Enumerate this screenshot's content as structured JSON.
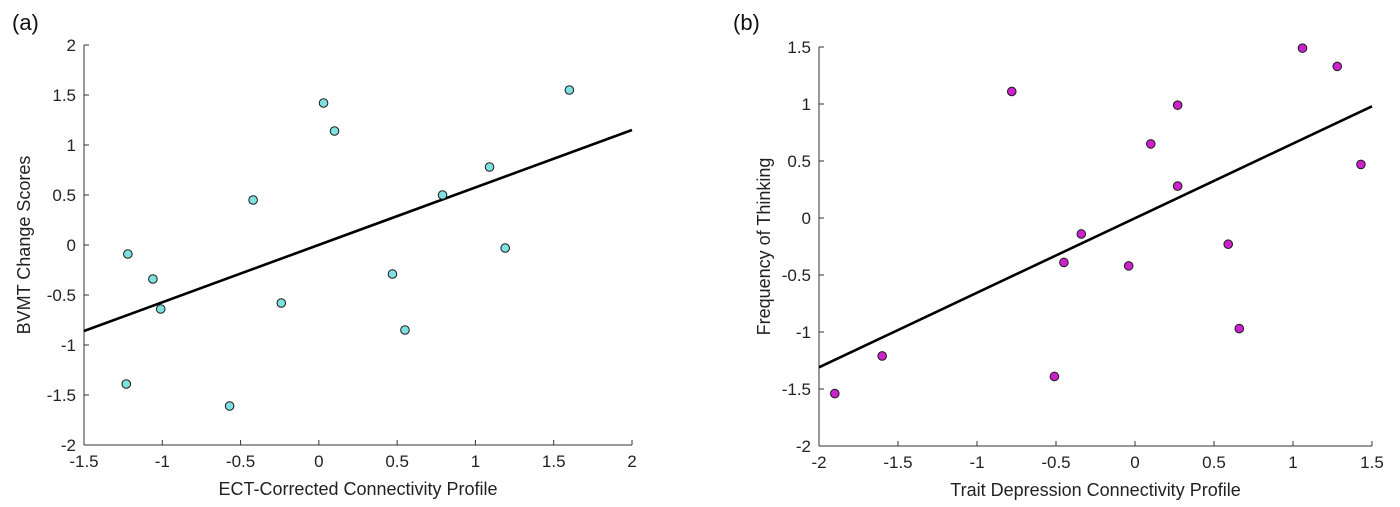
{
  "chart_data": [
    {
      "type": "scatter",
      "panel_label": "(a)",
      "title": "",
      "xlabel": "ECT-Corrected Connectivity Profile",
      "ylabel": "BVMT Change Scores",
      "xlim": [
        -1.5,
        2
      ],
      "ylim": [
        -2,
        2
      ],
      "xticks": [
        -1.5,
        -1,
        -0.5,
        0,
        0.5,
        1,
        1.5,
        2
      ],
      "yticks": [
        -2,
        -1.5,
        -1,
        -0.5,
        0,
        0.5,
        1,
        1.5,
        2
      ],
      "grid": false,
      "marker_color": "#7fe0e0",
      "fit_line": {
        "x": [
          -1.5,
          2
        ],
        "y": [
          -0.86,
          1.15
        ],
        "color": "#000000"
      },
      "points": [
        {
          "x": -1.22,
          "y": -0.09
        },
        {
          "x": -1.06,
          "y": -0.34
        },
        {
          "x": -1.01,
          "y": -0.64
        },
        {
          "x": -1.23,
          "y": -1.39
        },
        {
          "x": -0.57,
          "y": -1.61
        },
        {
          "x": -0.42,
          "y": 0.45
        },
        {
          "x": -0.24,
          "y": -0.58
        },
        {
          "x": 0.03,
          "y": 1.42
        },
        {
          "x": 0.1,
          "y": 1.14
        },
        {
          "x": 0.47,
          "y": -0.29
        },
        {
          "x": 0.55,
          "y": -0.85
        },
        {
          "x": 0.79,
          "y": 0.5
        },
        {
          "x": 1.09,
          "y": 0.78
        },
        {
          "x": 1.19,
          "y": -0.03
        },
        {
          "x": 1.6,
          "y": 1.55
        }
      ]
    },
    {
      "type": "scatter",
      "panel_label": "(b)",
      "title": "",
      "xlabel": "Trait Depression Connectivity Profile",
      "ylabel": "Frequency of Thinking",
      "xlim": [
        -2,
        1.5
      ],
      "ylim": [
        -2,
        1.5
      ],
      "xticks": [
        -2,
        -1.5,
        -1,
        -0.5,
        0,
        0.5,
        1,
        1.5
      ],
      "yticks": [
        -2,
        -1.5,
        -1,
        -0.5,
        0,
        0.5,
        1,
        1.5
      ],
      "grid": false,
      "marker_color": "#cc22cc",
      "fit_line": {
        "x": [
          -2,
          1.5
        ],
        "y": [
          -1.31,
          0.98
        ],
        "color": "#000000"
      },
      "points": [
        {
          "x": -1.9,
          "y": -1.54
        },
        {
          "x": -1.6,
          "y": -1.21
        },
        {
          "x": -0.78,
          "y": 1.11
        },
        {
          "x": -0.51,
          "y": -1.39
        },
        {
          "x": -0.45,
          "y": -0.39
        },
        {
          "x": -0.34,
          "y": -0.14
        },
        {
          "x": -0.04,
          "y": -0.42
        },
        {
          "x": 0.1,
          "y": 0.65
        },
        {
          "x": 0.27,
          "y": 0.99
        },
        {
          "x": 0.27,
          "y": 0.28
        },
        {
          "x": 0.59,
          "y": -0.23
        },
        {
          "x": 0.66,
          "y": -0.97
        },
        {
          "x": 1.06,
          "y": 1.49
        },
        {
          "x": 1.28,
          "y": 1.33
        },
        {
          "x": 1.43,
          "y": 0.47
        }
      ]
    }
  ]
}
